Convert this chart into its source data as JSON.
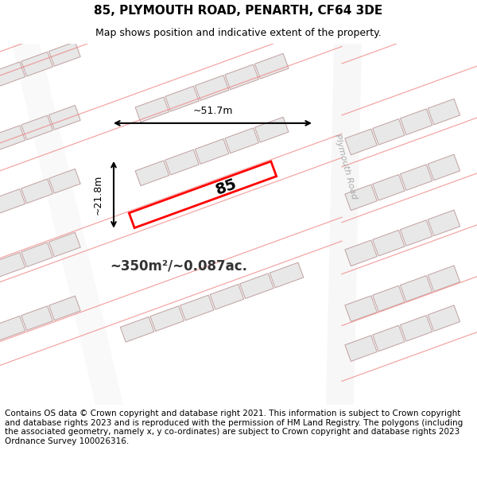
{
  "title": "85, PLYMOUTH ROAD, PENARTH, CF64 3DE",
  "subtitle": "Map shows position and indicative extent of the property.",
  "area_label": "~350m²/~0.087ac.",
  "property_number": "85",
  "dim_width": "~51.7m",
  "dim_height": "~21.8m",
  "road_label": "Plymouth Road",
  "footer_text": "Contains OS data © Crown copyright and database right 2021. This information is subject to Crown copyright and database rights 2023 and is reproduced with the permission of HM Land Registry. The polygons (including the associated geometry, namely x, y co-ordinates) are subject to Crown copyright and database rights 2023 Ordnance Survey 100026316.",
  "bg_color": "#f5f5f5",
  "map_bg": "#ffffff",
  "building_fill": "#e8e8e8",
  "building_edge": "#c0a0a0",
  "road_color": "#f0c0c0",
  "highlight_color": "#ff0000",
  "title_fontsize": 11,
  "subtitle_fontsize": 9,
  "footer_fontsize": 7.5
}
